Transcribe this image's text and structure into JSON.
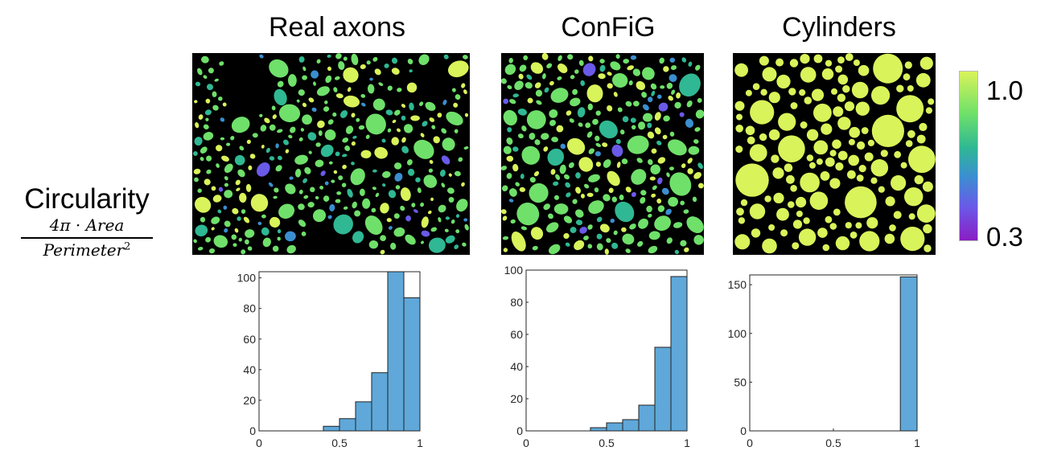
{
  "row_label": {
    "title": "Circularity",
    "formula_numerator": "4π · Area",
    "formula_denominator": "Perimeter",
    "formula_exponent": "2"
  },
  "colorbar": {
    "max_label": "1.0",
    "min_label": "0.3",
    "colors": [
      "#d9f35a",
      "#6fe06a",
      "#2fb893",
      "#3a8fd0",
      "#6a5ae8",
      "#8a1ec4"
    ]
  },
  "panels": [
    {
      "title": "Real axons"
    },
    {
      "title": "ConFiG"
    },
    {
      "title": "Cylinders"
    }
  ],
  "bar_color": "#5fa8d9",
  "chart_data": [
    {
      "type": "bar",
      "title": "Real axons",
      "bin_edges": [
        0,
        0.1,
        0.2,
        0.3,
        0.4,
        0.5,
        0.6,
        0.7,
        0.8,
        0.9,
        1.0
      ],
      "values": [
        0,
        0,
        0,
        0,
        3,
        8,
        19,
        38,
        104,
        87
      ],
      "xlim": [
        0,
        1
      ],
      "ylim": [
        0,
        104
      ],
      "xticks": [
        0,
        0.5,
        1
      ],
      "xtick_labels": [
        "0",
        "0.5",
        "1"
      ],
      "yticks": [
        0,
        20,
        40,
        60,
        80,
        100
      ],
      "ytick_labels": [
        "0",
        "20",
        "40",
        "60",
        "80",
        "100"
      ]
    },
    {
      "type": "bar",
      "title": "ConFiG",
      "bin_edges": [
        0,
        0.1,
        0.2,
        0.3,
        0.4,
        0.5,
        0.6,
        0.7,
        0.8,
        0.9,
        1.0
      ],
      "values": [
        0,
        0,
        0,
        0,
        2,
        5,
        7,
        16,
        52,
        96
      ],
      "xlim": [
        0,
        1
      ],
      "ylim": [
        0,
        100
      ],
      "xticks": [
        0,
        0.5,
        1
      ],
      "xtick_labels": [
        "0",
        "0.5",
        "1"
      ],
      "yticks": [
        0,
        20,
        40,
        60,
        80,
        100
      ],
      "ytick_labels": [
        "0",
        "20",
        "40",
        "60",
        "80",
        "100"
      ]
    },
    {
      "type": "bar",
      "title": "Cylinders",
      "bin_edges": [
        0.9,
        1.0
      ],
      "values": [
        158
      ],
      "xlim": [
        0,
        1
      ],
      "ylim": [
        0,
        160
      ],
      "xticks": [
        0,
        0.5,
        1
      ],
      "xtick_labels": [
        "0",
        "0.5",
        "1"
      ],
      "yticks": [
        0,
        50,
        100,
        150
      ],
      "ytick_labels": [
        "0",
        "50",
        "100",
        "150"
      ]
    }
  ]
}
